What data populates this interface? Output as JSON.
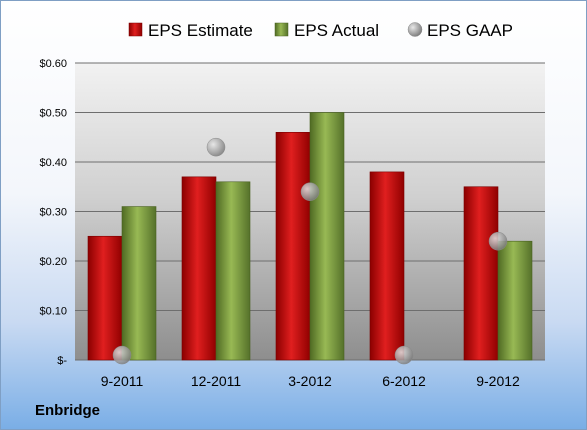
{
  "company": "Enbridge",
  "chart_data": {
    "type": "bar",
    "categories": [
      "9-2011",
      "12-2011",
      "3-2012",
      "6-2012",
      "9-2012"
    ],
    "series": [
      {
        "name": "EPS Estimate",
        "kind": "bar",
        "color": "#c00000",
        "values": [
          0.25,
          0.37,
          0.46,
          0.38,
          0.35
        ]
      },
      {
        "name": "EPS Actual",
        "kind": "bar",
        "color": "#77933c",
        "values": [
          0.31,
          0.36,
          0.5,
          null,
          0.24
        ]
      },
      {
        "name": "EPS GAAP",
        "kind": "scatter",
        "color": "#a6a6a6",
        "values": [
          0.01,
          0.43,
          0.34,
          0.01,
          0.24
        ]
      }
    ],
    "y_ticks": [
      {
        "value": 0,
        "label": "$-"
      },
      {
        "value": 0.1,
        "label": "$0.10"
      },
      {
        "value": 0.2,
        "label": "$0.20"
      },
      {
        "value": 0.3,
        "label": "$0.30"
      },
      {
        "value": 0.4,
        "label": "$0.40"
      },
      {
        "value": 0.5,
        "label": "$0.50"
      },
      {
        "value": 0.6,
        "label": "$0.60"
      }
    ],
    "ylim": [
      0,
      0.6
    ],
    "grid": true,
    "legend_position": "top"
  }
}
